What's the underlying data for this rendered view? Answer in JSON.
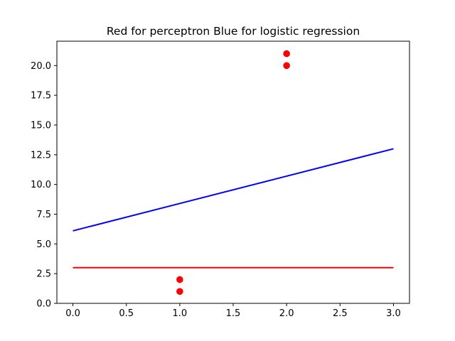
{
  "chart_data": {
    "type": "line",
    "title": "Red for perceptron Blue for logistic regression",
    "xlabel": "",
    "ylabel": "",
    "xlim": [
      -0.15,
      3.15
    ],
    "ylim": [
      0,
      22.05
    ],
    "grid": false,
    "x_ticks": [
      0.0,
      0.5,
      1.0,
      1.5,
      2.0,
      2.5,
      3.0
    ],
    "x_tick_labels": [
      "0.0",
      "0.5",
      "1.0",
      "1.5",
      "2.0",
      "2.5",
      "3.0"
    ],
    "y_ticks": [
      0.0,
      2.5,
      5.0,
      7.5,
      10.0,
      12.5,
      15.0,
      17.5,
      20.0
    ],
    "y_tick_labels": [
      "0.0",
      "2.5",
      "5.0",
      "7.5",
      "10.0",
      "12.5",
      "15.0",
      "17.5",
      "20.0"
    ],
    "lines": [
      {
        "color": "#0000ff",
        "points": [
          [
            0,
            6.1
          ],
          [
            3,
            13.0
          ]
        ]
      },
      {
        "color": "#ff0000",
        "points": [
          [
            0,
            3.0
          ],
          [
            3,
            3.0
          ]
        ]
      }
    ],
    "scatter": {
      "color": "#ff0000",
      "points": [
        [
          1,
          1
        ],
        [
          1,
          2
        ],
        [
          2,
          20
        ],
        [
          2,
          21
        ]
      ]
    }
  }
}
